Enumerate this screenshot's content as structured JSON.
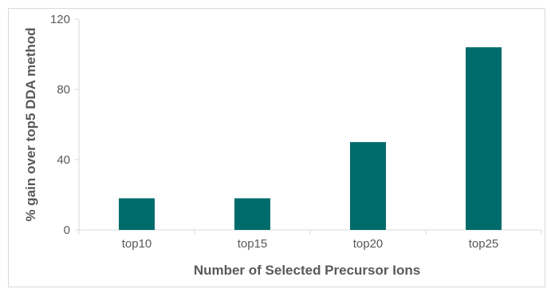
{
  "chart_data": {
    "type": "bar",
    "title": "",
    "categories": [
      "top10",
      "top15",
      "top20",
      "top25"
    ],
    "values": [
      18,
      18,
      50,
      104
    ],
    "xlabel": "Number of Selected Precursor Ions",
    "ylabel": "% gain over top5 DDA method",
    "ylim": [
      0,
      120
    ],
    "yticks": [
      0,
      40,
      80,
      120
    ],
    "grid": false,
    "legend": "none",
    "bar_color": "#006b6b",
    "axis_color": "#d9d9d9",
    "text_color": "#595959"
  }
}
